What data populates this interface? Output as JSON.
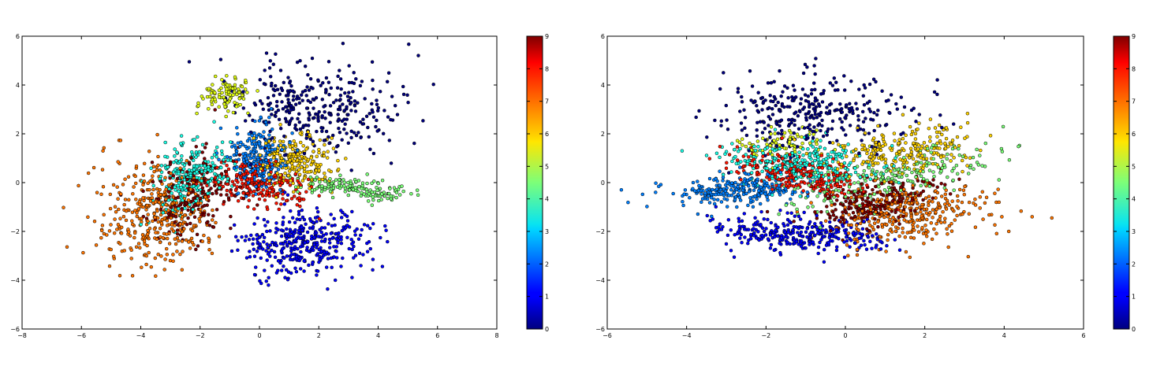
{
  "chart_data": [
    {
      "type": "scatter",
      "title": "",
      "xlabel": "",
      "ylabel": "",
      "xlim": [
        -8,
        8
      ],
      "ylim": [
        -6,
        6
      ],
      "xticks": [
        "−8",
        "−6",
        "−4",
        "−2",
        "0",
        "2",
        "4",
        "6",
        "8"
      ],
      "yticks": [
        "−6",
        "−4",
        "−2",
        "0",
        "2",
        "4",
        "6"
      ],
      "grid": false,
      "colorbar": {
        "colormap": "jet",
        "range": [
          0,
          9
        ],
        "ticks": [
          "0",
          "1",
          "2",
          "3",
          "4",
          "5",
          "6",
          "7",
          "8",
          "9"
        ]
      },
      "clusters": [
        {
          "label": 0,
          "color": "#00007f",
          "n": 320,
          "center": [
            1.9,
            3.0
          ],
          "spread": [
            1.3,
            0.9
          ],
          "rot": -0.15
        },
        {
          "label": 1,
          "color": "#0000ff",
          "n": 380,
          "center": [
            1.5,
            -2.4
          ],
          "spread": [
            1.1,
            0.65
          ],
          "rot": 0.1
        },
        {
          "label": 2,
          "color": "#007fff",
          "n": 240,
          "center": [
            -0.1,
            1.1
          ],
          "spread": [
            0.5,
            0.65
          ],
          "rot": 0.0
        },
        {
          "label": 3,
          "color": "#19ffe6",
          "n": 260,
          "center": [
            -2.3,
            0.3
          ],
          "spread": [
            0.55,
            0.8
          ],
          "rot": -0.6
        },
        {
          "label": 4,
          "color": "#7cff79",
          "n": 160,
          "center": [
            3.2,
            -0.25
          ],
          "spread": [
            1.1,
            0.22
          ],
          "rot": -0.12
        },
        {
          "label": 5,
          "color": "#e3ff13",
          "n": 110,
          "center": [
            -1.1,
            3.6
          ],
          "spread": [
            0.45,
            0.35
          ],
          "rot": 0.0
        },
        {
          "label": 6,
          "color": "#ffd200",
          "n": 220,
          "center": [
            1.2,
            0.9
          ],
          "spread": [
            0.6,
            0.55
          ],
          "rot": 0.0
        },
        {
          "label": 7,
          "color": "#ff7500",
          "n": 380,
          "center": [
            -3.5,
            -1.3
          ],
          "spread": [
            1.0,
            1.1
          ],
          "rot": 0.3
        },
        {
          "label": 8,
          "color": "#ff1300",
          "n": 230,
          "center": [
            0.0,
            0.0
          ],
          "spread": [
            0.8,
            0.45
          ],
          "rot": -0.2
        },
        {
          "label": 9,
          "color": "#7f0000",
          "n": 200,
          "center": [
            -2.3,
            -0.5
          ],
          "spread": [
            0.7,
            0.9
          ],
          "rot": -0.5
        }
      ]
    },
    {
      "type": "scatter",
      "title": "",
      "xlabel": "",
      "ylabel": "",
      "xlim": [
        -6,
        6
      ],
      "ylim": [
        -6,
        6
      ],
      "xticks": [
        "−6",
        "−4",
        "−2",
        "0",
        "2",
        "4",
        "6"
      ],
      "yticks": [
        "−6",
        "−4",
        "−2",
        "0",
        "2",
        "4",
        "6"
      ],
      "grid": false,
      "colorbar": {
        "colormap": "jet",
        "range": [
          0,
          9
        ],
        "ticks": [
          "0",
          "1",
          "2",
          "3",
          "4",
          "5",
          "6",
          "7",
          "8",
          "9"
        ]
      },
      "clusters": [
        {
          "label": 0,
          "color": "#00007f",
          "n": 320,
          "center": [
            -0.8,
            2.9
          ],
          "spread": [
            1.2,
            0.75
          ],
          "rot": 0.0
        },
        {
          "label": 1,
          "color": "#0000ff",
          "n": 320,
          "center": [
            -1.2,
            -2.1
          ],
          "spread": [
            1.0,
            0.35
          ],
          "rot": -0.1
        },
        {
          "label": 2,
          "color": "#007fff",
          "n": 260,
          "center": [
            -2.6,
            -0.3
          ],
          "spread": [
            0.9,
            0.3
          ],
          "rot": 0.1
        },
        {
          "label": 3,
          "color": "#19ffe6",
          "n": 280,
          "center": [
            -1.1,
            0.8
          ],
          "spread": [
            1.0,
            0.45
          ],
          "rot": -0.15
        },
        {
          "label": 4,
          "color": "#7cff79",
          "n": 220,
          "center": [
            1.2,
            0.2
          ],
          "spread": [
            1.4,
            0.45
          ],
          "rot": 0.35
        },
        {
          "label": 5,
          "color": "#e3ff13",
          "n": 80,
          "center": [
            -1.6,
            1.6
          ],
          "spread": [
            0.6,
            0.35
          ],
          "rot": 0.0
        },
        {
          "label": 6,
          "color": "#ffd200",
          "n": 240,
          "center": [
            1.4,
            1.3
          ],
          "spread": [
            0.9,
            0.5
          ],
          "rot": 0.3
        },
        {
          "label": 7,
          "color": "#ff7500",
          "n": 340,
          "center": [
            1.6,
            -1.3
          ],
          "spread": [
            1.0,
            0.65
          ],
          "rot": 0.15
        },
        {
          "label": 8,
          "color": "#ff1300",
          "n": 240,
          "center": [
            -1.1,
            0.3
          ],
          "spread": [
            0.9,
            0.35
          ],
          "rot": -0.35
        },
        {
          "label": 9,
          "color": "#7f0000",
          "n": 220,
          "center": [
            0.8,
            -0.8
          ],
          "spread": [
            0.8,
            0.4
          ],
          "rot": 0.4
        }
      ]
    }
  ]
}
